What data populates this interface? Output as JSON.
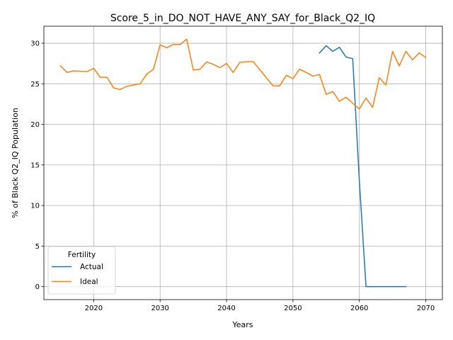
{
  "chart_data": {
    "type": "line",
    "title": "Score_5_in_DO_NOT_HAVE_ANY_SAY_for_Black_Q2_IQ",
    "xlabel": "Years",
    "ylabel": "% of Black Q2_IQ Population",
    "xlim": [
      2012.5,
      2072.5
    ],
    "ylim": [
      -1.6,
      32.1
    ],
    "xticks": [
      2020,
      2030,
      2040,
      2050,
      2060,
      2070
    ],
    "yticks": [
      0,
      5,
      10,
      15,
      20,
      25,
      30
    ],
    "grid": true,
    "legend": {
      "title": "Fertility",
      "placement": "lower-left"
    },
    "series": [
      {
        "name": "Actual",
        "color": "#1f77b4",
        "x": [
          2054,
          2055,
          2056,
          2057,
          2058,
          2059,
          2060,
          2061,
          2062,
          2063,
          2064,
          2065,
          2066,
          2067
        ],
        "values": [
          28.8,
          29.7,
          29.0,
          29.5,
          28.3,
          28.1,
          13.0,
          0.0,
          0.0,
          0.0,
          0.0,
          0.0,
          0.0,
          0.0
        ]
      },
      {
        "name": "Ideal",
        "color": "#ff7f0e",
        "x": [
          2015,
          2016,
          2017,
          2018,
          2019,
          2020,
          2021,
          2022,
          2023,
          2024,
          2025,
          2026,
          2027,
          2028,
          2029,
          2030,
          2031,
          2032,
          2033,
          2034,
          2035,
          2036,
          2037,
          2038,
          2039,
          2040,
          2041,
          2042,
          2043,
          2044,
          2045,
          2046,
          2047,
          2048,
          2049,
          2050,
          2051,
          2052,
          2053,
          2054,
          2055,
          2056,
          2057,
          2058,
          2059,
          2060,
          2061,
          2062,
          2063,
          2064,
          2065,
          2066,
          2067,
          2068,
          2069,
          2070
        ],
        "values": [
          27.2,
          26.4,
          26.6,
          26.55,
          26.5,
          26.9,
          25.8,
          25.8,
          24.5,
          24.3,
          24.7,
          24.85,
          25.0,
          26.2,
          26.8,
          29.8,
          29.45,
          29.85,
          29.85,
          30.5,
          26.7,
          26.8,
          27.7,
          27.4,
          27.0,
          27.5,
          26.4,
          27.65,
          27.7,
          27.75,
          26.75,
          25.75,
          24.75,
          24.75,
          26.05,
          25.65,
          26.8,
          26.4,
          25.95,
          26.15,
          23.7,
          24.05,
          22.85,
          23.35,
          22.6,
          21.9,
          23.25,
          22.1,
          25.75,
          24.85,
          29.0,
          27.2,
          29.0,
          27.95,
          28.8,
          28.25
        ]
      }
    ]
  }
}
